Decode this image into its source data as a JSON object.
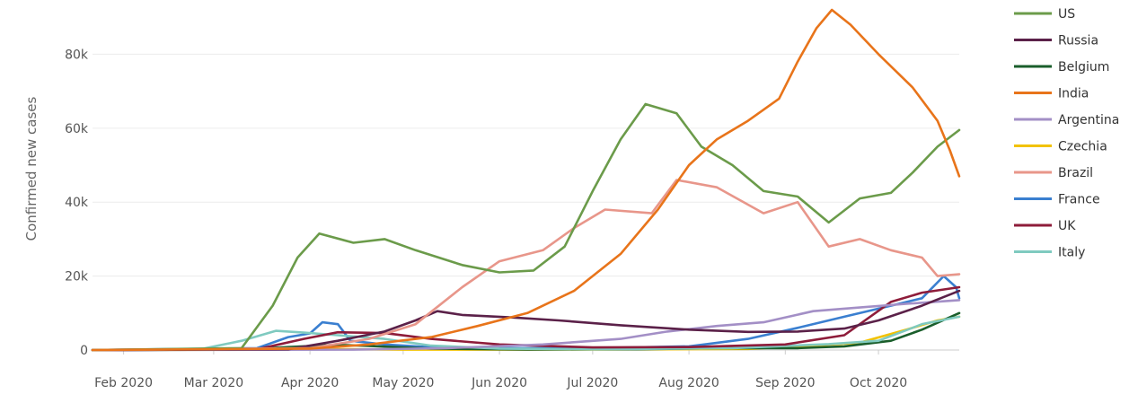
{
  "chart_data": {
    "type": "line",
    "title": "",
    "xlabel": "",
    "ylabel": "Confirmed new cases",
    "grid": true,
    "legend_position": "right",
    "x_ticks": [
      "Feb 2020",
      "Mar 2020",
      "Apr 2020",
      "May 2020",
      "Jun 2020",
      "Jul 2020",
      "Aug 2020",
      "Sep 2020",
      "Oct 2020"
    ],
    "y_ticks": [
      "0",
      "20k",
      "40k",
      "60k",
      "80k"
    ],
    "ylim": [
      0,
      92000
    ],
    "series": [
      {
        "name": "US",
        "color": "#6b9b4a",
        "points": [
          [
            "2020-01-22",
            0
          ],
          [
            "2020-03-10",
            500
          ],
          [
            "2020-03-20",
            12000
          ],
          [
            "2020-03-28",
            25000
          ],
          [
            "2020-04-04",
            31500
          ],
          [
            "2020-04-15",
            29000
          ],
          [
            "2020-04-25",
            30000
          ],
          [
            "2020-05-05",
            27000
          ],
          [
            "2020-05-20",
            23000
          ],
          [
            "2020-06-01",
            21000
          ],
          [
            "2020-06-12",
            21500
          ],
          [
            "2020-06-22",
            28000
          ],
          [
            "2020-07-01",
            43000
          ],
          [
            "2020-07-10",
            57000
          ],
          [
            "2020-07-18",
            66500
          ],
          [
            "2020-07-28",
            64000
          ],
          [
            "2020-08-05",
            55000
          ],
          [
            "2020-08-15",
            50000
          ],
          [
            "2020-08-25",
            43000
          ],
          [
            "2020-09-05",
            41500
          ],
          [
            "2020-09-15",
            34500
          ],
          [
            "2020-09-25",
            41000
          ],
          [
            "2020-10-05",
            42500
          ],
          [
            "2020-10-12",
            48000
          ],
          [
            "2020-10-20",
            55000
          ],
          [
            "2020-10-27",
            59500
          ]
        ]
      },
      {
        "name": "Russia",
        "color": "#5b2149",
        "points": [
          [
            "2020-01-22",
            0
          ],
          [
            "2020-03-25",
            200
          ],
          [
            "2020-04-10",
            2500
          ],
          [
            "2020-04-25",
            5000
          ],
          [
            "2020-05-05",
            8000
          ],
          [
            "2020-05-12",
            10500
          ],
          [
            "2020-05-20",
            9500
          ],
          [
            "2020-06-05",
            8800
          ],
          [
            "2020-06-20",
            8000
          ],
          [
            "2020-07-10",
            6700
          ],
          [
            "2020-08-01",
            5500
          ],
          [
            "2020-08-20",
            4900
          ],
          [
            "2020-09-05",
            5000
          ],
          [
            "2020-09-20",
            5800
          ],
          [
            "2020-10-01",
            8000
          ],
          [
            "2020-10-15",
            12000
          ],
          [
            "2020-10-27",
            16000
          ]
        ]
      },
      {
        "name": "Belgium",
        "color": "#1a5e2b",
        "points": [
          [
            "2020-01-22",
            0
          ],
          [
            "2020-03-10",
            100
          ],
          [
            "2020-03-25",
            800
          ],
          [
            "2020-04-10",
            1400
          ],
          [
            "2020-04-20",
            1100
          ],
          [
            "2020-05-10",
            400
          ],
          [
            "2020-06-10",
            150
          ],
          [
            "2020-07-15",
            200
          ],
          [
            "2020-08-10",
            500
          ],
          [
            "2020-09-05",
            500
          ],
          [
            "2020-09-20",
            1000
          ],
          [
            "2020-10-05",
            2500
          ],
          [
            "2020-10-15",
            5500
          ],
          [
            "2020-10-27",
            10000
          ]
        ]
      },
      {
        "name": "India",
        "color": "#e8741a",
        "points": [
          [
            "2020-01-22",
            0
          ],
          [
            "2020-04-01",
            400
          ],
          [
            "2020-04-20",
            1500
          ],
          [
            "2020-05-10",
            3500
          ],
          [
            "2020-05-25",
            6500
          ],
          [
            "2020-06-10",
            10000
          ],
          [
            "2020-06-25",
            16000
          ],
          [
            "2020-07-10",
            26000
          ],
          [
            "2020-07-22",
            38000
          ],
          [
            "2020-08-01",
            50000
          ],
          [
            "2020-08-10",
            57000
          ],
          [
            "2020-08-20",
            62000
          ],
          [
            "2020-08-30",
            68000
          ],
          [
            "2020-09-05",
            78000
          ],
          [
            "2020-09-11",
            87000
          ],
          [
            "2020-09-16",
            92000
          ],
          [
            "2020-09-22",
            88000
          ],
          [
            "2020-10-01",
            80000
          ],
          [
            "2020-10-12",
            71000
          ],
          [
            "2020-10-20",
            62000
          ],
          [
            "2020-10-24",
            54000
          ],
          [
            "2020-10-27",
            47000
          ]
        ]
      },
      {
        "name": "Argentina",
        "color": "#a38fc6",
        "points": [
          [
            "2020-01-22",
            0
          ],
          [
            "2020-04-15",
            100
          ],
          [
            "2020-05-15",
            500
          ],
          [
            "2020-06-15",
            1500
          ],
          [
            "2020-07-10",
            3000
          ],
          [
            "2020-07-25",
            5000
          ],
          [
            "2020-08-10",
            6500
          ],
          [
            "2020-08-25",
            7500
          ],
          [
            "2020-09-10",
            10500
          ],
          [
            "2020-09-25",
            11500
          ],
          [
            "2020-10-10",
            12500
          ],
          [
            "2020-10-27",
            13500
          ]
        ]
      },
      {
        "name": "Czechia",
        "color": "#f2c200",
        "points": [
          [
            "2020-01-22",
            0
          ],
          [
            "2020-03-20",
            100
          ],
          [
            "2020-04-01",
            300
          ],
          [
            "2020-05-01",
            100
          ],
          [
            "2020-07-01",
            150
          ],
          [
            "2020-08-20",
            300
          ],
          [
            "2020-09-10",
            1200
          ],
          [
            "2020-09-25",
            2000
          ],
          [
            "2020-10-10",
            5500
          ],
          [
            "2020-10-20",
            8000
          ],
          [
            "2020-10-27",
            9000
          ]
        ]
      },
      {
        "name": "Brazil",
        "color": "#e8968a",
        "points": [
          [
            "2020-01-22",
            0
          ],
          [
            "2020-04-01",
            500
          ],
          [
            "2020-04-20",
            3000
          ],
          [
            "2020-05-05",
            7000
          ],
          [
            "2020-05-20",
            17000
          ],
          [
            "2020-06-01",
            24000
          ],
          [
            "2020-06-15",
            27000
          ],
          [
            "2020-06-25",
            33000
          ],
          [
            "2020-07-05",
            38000
          ],
          [
            "2020-07-20",
            37000
          ],
          [
            "2020-07-28",
            46000
          ],
          [
            "2020-08-10",
            44000
          ],
          [
            "2020-08-25",
            37000
          ],
          [
            "2020-09-05",
            40000
          ],
          [
            "2020-09-15",
            28000
          ],
          [
            "2020-09-25",
            30000
          ],
          [
            "2020-10-05",
            27000
          ],
          [
            "2020-10-15",
            25000
          ],
          [
            "2020-10-20",
            20000
          ],
          [
            "2020-10-27",
            20500
          ]
        ]
      },
      {
        "name": "France",
        "color": "#3a7fd0",
        "points": [
          [
            "2020-01-22",
            0
          ],
          [
            "2020-03-15",
            500
          ],
          [
            "2020-03-25",
            3500
          ],
          [
            "2020-04-01",
            4500
          ],
          [
            "2020-04-05",
            7500
          ],
          [
            "2020-04-10",
            7000
          ],
          [
            "2020-04-14",
            2500
          ],
          [
            "2020-04-25",
            1500
          ],
          [
            "2020-05-15",
            500
          ],
          [
            "2020-07-01",
            500
          ],
          [
            "2020-08-01",
            1000
          ],
          [
            "2020-08-20",
            3000
          ],
          [
            "2020-09-05",
            6000
          ],
          [
            "2020-09-20",
            9000
          ],
          [
            "2020-10-05",
            12000
          ],
          [
            "2020-10-15",
            14000
          ],
          [
            "2020-10-22",
            20000
          ],
          [
            "2020-10-26",
            17000
          ],
          [
            "2020-10-27",
            14000
          ]
        ]
      },
      {
        "name": "UK",
        "color": "#8e1c3a",
        "points": [
          [
            "2020-01-22",
            0
          ],
          [
            "2020-03-15",
            200
          ],
          [
            "2020-03-30",
            3000
          ],
          [
            "2020-04-10",
            4800
          ],
          [
            "2020-04-25",
            4600
          ],
          [
            "2020-05-10",
            3000
          ],
          [
            "2020-06-01",
            1500
          ],
          [
            "2020-07-01",
            700
          ],
          [
            "2020-08-01",
            800
          ],
          [
            "2020-09-01",
            1500
          ],
          [
            "2020-09-20",
            4000
          ],
          [
            "2020-10-05",
            13000
          ],
          [
            "2020-10-15",
            15500
          ],
          [
            "2020-10-27",
            17000
          ]
        ]
      },
      {
        "name": "Italy",
        "color": "#7fcac0",
        "points": [
          [
            "2020-01-22",
            0
          ],
          [
            "2020-02-25",
            100
          ],
          [
            "2020-03-10",
            2500
          ],
          [
            "2020-03-21",
            5200
          ],
          [
            "2020-03-30",
            4700
          ],
          [
            "2020-04-10",
            4000
          ],
          [
            "2020-04-25",
            3000
          ],
          [
            "2020-05-10",
            1200
          ],
          [
            "2020-06-01",
            400
          ],
          [
            "2020-07-01",
            200
          ],
          [
            "2020-08-15",
            500
          ],
          [
            "2020-09-15",
            1600
          ],
          [
            "2020-10-01",
            2500
          ],
          [
            "2020-10-15",
            7000
          ],
          [
            "2020-10-27",
            9000
          ]
        ]
      }
    ]
  }
}
